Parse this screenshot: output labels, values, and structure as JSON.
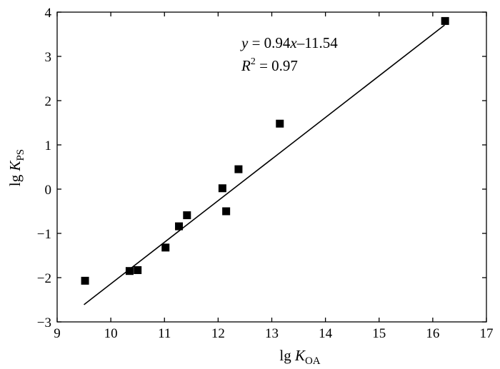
{
  "chart_data": {
    "type": "scatter",
    "title": "",
    "xlabel": {
      "prefix": "lg ",
      "italic": "K",
      "sub": "OA"
    },
    "ylabel": {
      "prefix": "lg ",
      "italic": "K",
      "sub": "PS"
    },
    "xlim": [
      9,
      17
    ],
    "ylim": [
      -3,
      4
    ],
    "xticks": [
      "9",
      "10",
      "11",
      "12",
      "13",
      "14",
      "15",
      "16",
      "17"
    ],
    "yticks": [
      "4",
      "3",
      "2",
      "1",
      "0",
      "−1",
      "−2",
      "−3"
    ],
    "grid": false,
    "series": [
      {
        "marker": "square",
        "color": "#000000",
        "points": [
          [
            9.52,
            -2.07
          ],
          [
            10.35,
            -1.85
          ],
          [
            10.5,
            -1.83
          ],
          [
            11.02,
            -1.32
          ],
          [
            11.27,
            -0.84
          ],
          [
            11.42,
            -0.59
          ],
          [
            12.08,
            0.02
          ],
          [
            12.15,
            -0.5
          ],
          [
            12.38,
            0.45
          ],
          [
            13.15,
            1.48
          ],
          [
            16.23,
            3.8
          ]
        ]
      }
    ],
    "fit": {
      "slope": 0.94,
      "intercept": -11.54,
      "x_range": [
        9.5,
        16.22
      ]
    },
    "annotation": {
      "equation": {
        "y": "y",
        "eq": " = 0.94",
        "x": "x",
        "rest": "–11.54"
      },
      "r2": {
        "R": "R",
        "sup": "2",
        "rest": " = 0.97"
      }
    }
  }
}
